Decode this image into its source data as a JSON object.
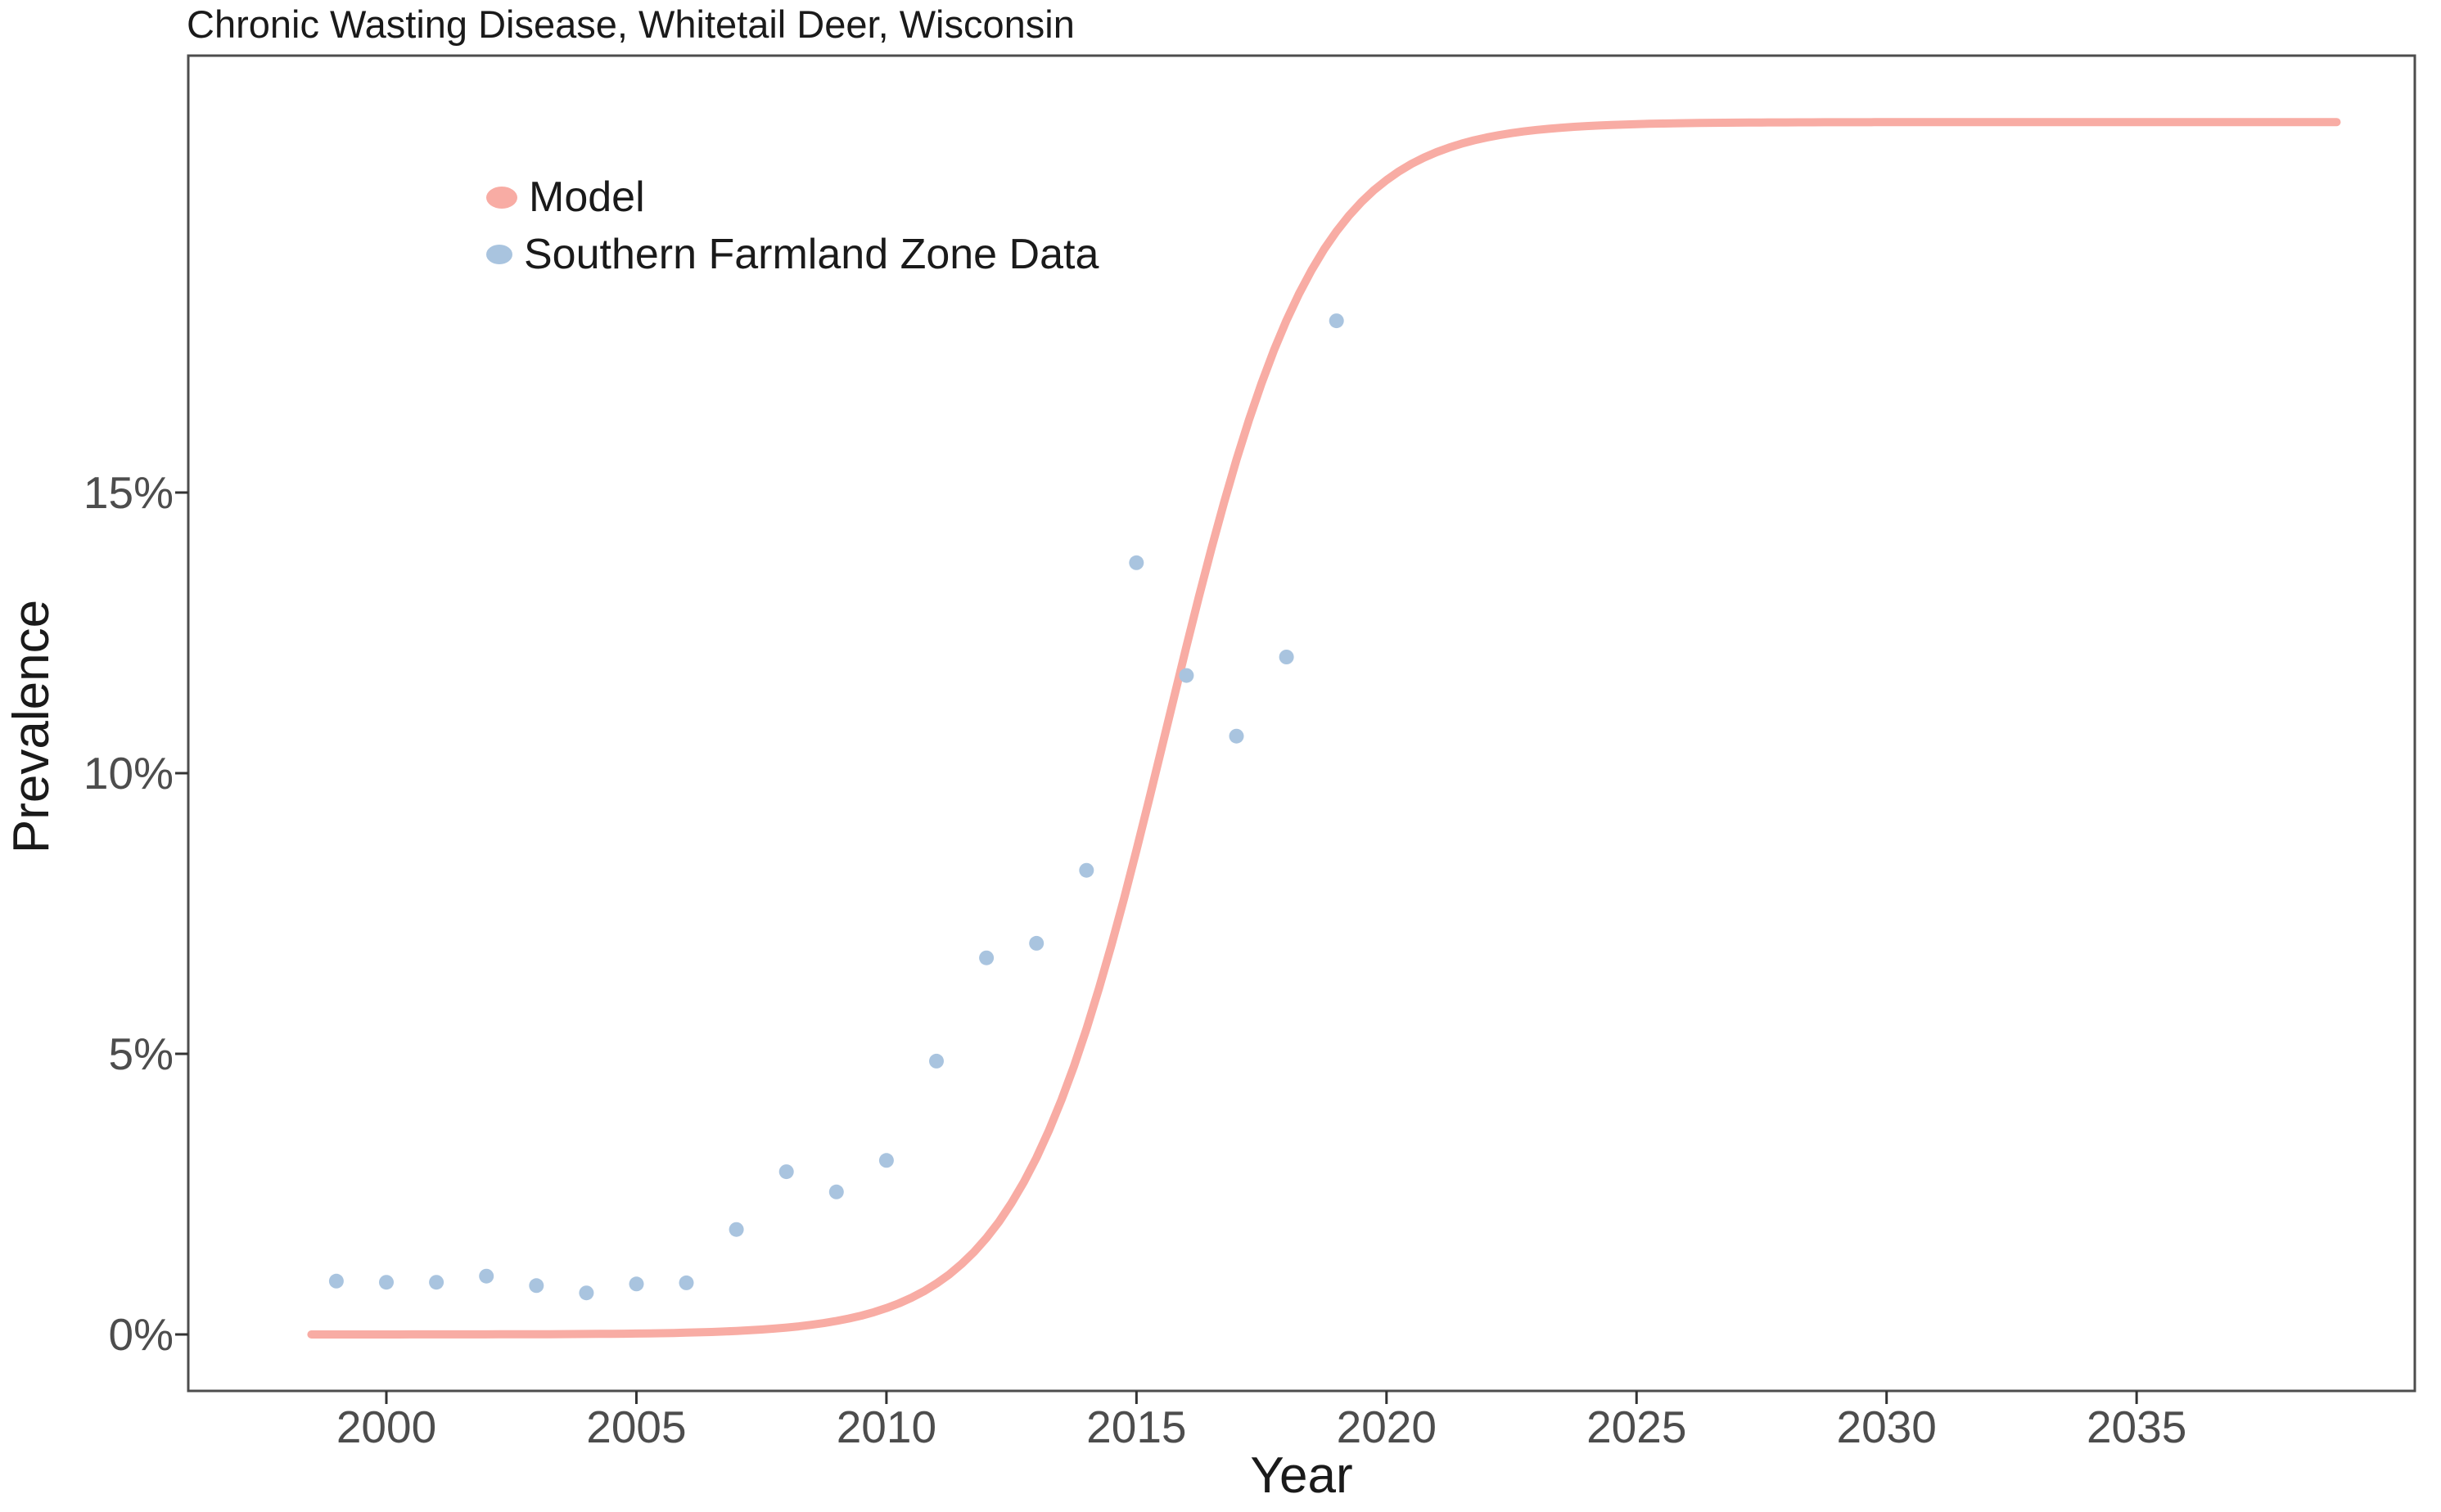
{
  "page": {
    "background_color": "#FFFFFF",
    "title": "Chronic Wasting Disease, Whitetail Deer, Wisconsin"
  },
  "legend": {
    "position": "inside-top-left",
    "items": [
      {
        "label": "Model",
        "color": "#F8ACA4"
      },
      {
        "label": "Southern Farmland Zone Data",
        "color": "#A9C4DF"
      }
    ]
  },
  "axes": {
    "x": {
      "title": "Year",
      "tick_labels": [
        "2000",
        "2005",
        "2010",
        "2015",
        "2020",
        "2025",
        "2030",
        "2035"
      ]
    },
    "y": {
      "title": "Prevalence",
      "tick_labels": [
        "0%",
        "5%",
        "10%",
        "15%"
      ]
    }
  },
  "chart_data": {
    "type": "line",
    "title": "Chronic Wasting Disease, Whitetail Deer, Wisconsin",
    "xlabel": "Year",
    "ylabel": "Prevalence",
    "x_ticks": [
      2000,
      2005,
      2010,
      2015,
      2020,
      2025,
      2030,
      2035
    ],
    "y_ticks": [
      {
        "value": 0,
        "label": "0%"
      },
      {
        "value": 5,
        "label": "5%"
      },
      {
        "value": 10,
        "label": "10%"
      },
      {
        "value": 15,
        "label": "15%"
      }
    ],
    "xlim": [
      1996.0,
      2040.6
    ],
    "ylim_percent": [
      -1.0,
      22.8
    ],
    "grid": "off",
    "legend_position": "inside top-left",
    "series": [
      {
        "name": "Model",
        "kind": "line",
        "color": "#F8ACA4",
        "line_width": 10,
        "model": "logistic",
        "logistic_params": {
          "K_percent": 21.6,
          "r_per_year": 0.68,
          "t0_year": 2015.6
        },
        "x_range": [
          1998.5,
          2039.0
        ]
      },
      {
        "name": "Southern Farmland Zone Data",
        "kind": "scatter",
        "color": "#A9C4DF",
        "point_radius": 9,
        "points_year_percent": [
          [
            1999,
            0.95
          ],
          [
            2000,
            0.93
          ],
          [
            2001,
            0.93
          ],
          [
            2002,
            1.04
          ],
          [
            2003,
            0.87
          ],
          [
            2004,
            0.74
          ],
          [
            2005,
            0.9
          ],
          [
            2006,
            0.92
          ],
          [
            2007,
            1.87
          ],
          [
            2008,
            2.9
          ],
          [
            2009,
            2.54
          ],
          [
            2010,
            3.1
          ],
          [
            2011,
            4.87
          ],
          [
            2012,
            6.71
          ],
          [
            2013,
            6.97
          ],
          [
            2014,
            8.27
          ],
          [
            2015,
            13.75
          ],
          [
            2016,
            11.74
          ],
          [
            2017,
            10.66
          ],
          [
            2018,
            12.07
          ],
          [
            2019,
            18.06
          ]
        ]
      }
    ],
    "style": {
      "panel_border_color": "#4D4D4D",
      "tick_color": "#333333",
      "tick_label_color": "#4D4D4D",
      "text_color": "#1A1A1A"
    }
  }
}
